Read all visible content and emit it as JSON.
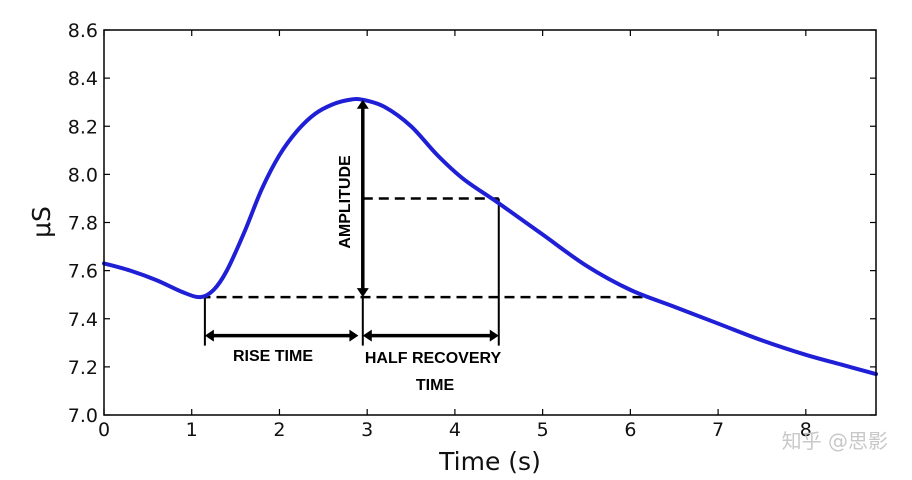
{
  "chart_data": {
    "type": "line",
    "title": "",
    "xlabel": "Time (s)",
    "ylabel": "μS",
    "xlim": [
      0,
      8.8
    ],
    "ylim": [
      7.0,
      8.6
    ],
    "x_ticks": [
      "0",
      "1",
      "2",
      "3",
      "4",
      "5",
      "6",
      "7",
      "8"
    ],
    "y_ticks": [
      "7.0",
      "7.2",
      "7.4",
      "7.6",
      "7.8",
      "8.0",
      "8.2",
      "8.4",
      "8.6"
    ],
    "grid": false,
    "series": [
      {
        "color": "#1f1fd6",
        "points": [
          [
            0.0,
            7.63
          ],
          [
            0.3,
            7.6
          ],
          [
            0.6,
            7.56
          ],
          [
            0.9,
            7.51
          ],
          [
            1.1,
            7.49
          ],
          [
            1.25,
            7.52
          ],
          [
            1.4,
            7.6
          ],
          [
            1.6,
            7.76
          ],
          [
            1.8,
            7.94
          ],
          [
            2.0,
            8.08
          ],
          [
            2.2,
            8.18
          ],
          [
            2.4,
            8.25
          ],
          [
            2.6,
            8.29
          ],
          [
            2.8,
            8.31
          ],
          [
            2.95,
            8.31
          ],
          [
            3.2,
            8.28
          ],
          [
            3.5,
            8.2
          ],
          [
            3.8,
            8.08
          ],
          [
            4.1,
            7.98
          ],
          [
            4.5,
            7.88
          ],
          [
            5.0,
            7.75
          ],
          [
            5.5,
            7.62
          ],
          [
            6.0,
            7.52
          ],
          [
            6.5,
            7.45
          ],
          [
            7.0,
            7.38
          ],
          [
            7.5,
            7.31
          ],
          [
            8.0,
            7.25
          ],
          [
            8.4,
            7.21
          ],
          [
            8.8,
            7.17
          ]
        ]
      }
    ],
    "annotations": {
      "amplitude": {
        "label": "AMPLITUDE",
        "x": 2.95,
        "y_from": 7.49,
        "y_to": 8.31
      },
      "rise_time": {
        "label": "RISE TIME",
        "x_from": 1.15,
        "x_to": 2.9,
        "y": 7.33
      },
      "half_recovery": {
        "label_line1": "HALF RECOVERY",
        "label_line2": "TIME",
        "x_from": 2.95,
        "x_to": 4.5,
        "y": 7.33
      },
      "baseline": {
        "y": 7.49,
        "x_from": 1.1,
        "x_to": 6.2
      },
      "half_level": {
        "y": 7.9,
        "x_from": 2.95,
        "x_to": 4.5
      }
    }
  },
  "watermark": "知乎 @思影"
}
